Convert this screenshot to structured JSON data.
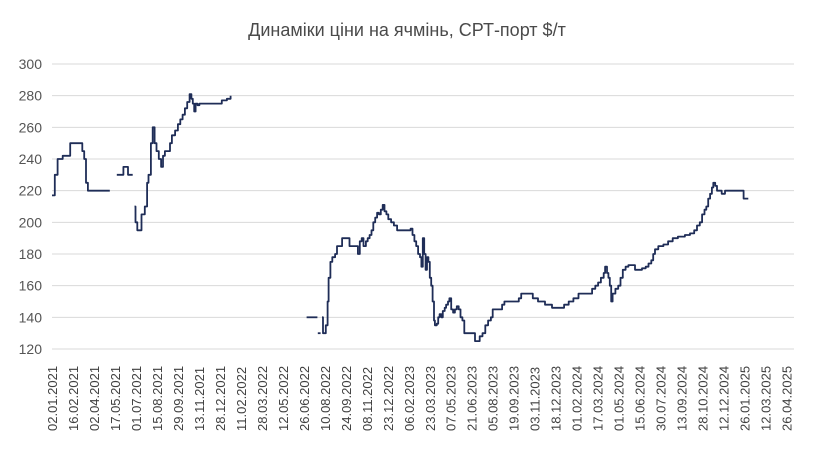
{
  "chart_data": {
    "type": "line",
    "title": "Динаміки ціни на ячмінь, СРТ-порт $/т",
    "xlabel": "",
    "ylabel": "",
    "ylim": [
      120,
      300
    ],
    "yticks": [
      120,
      140,
      160,
      180,
      200,
      220,
      240,
      260,
      280,
      300
    ],
    "grid": true,
    "legend": "none",
    "series_color": "#1f2d57",
    "grid_color": "#d9d9d9",
    "x_range": [
      "2021-01-02",
      "2025-05-12"
    ],
    "x_ticks": [
      {
        "label": "02.01.2021",
        "date": "2021-01-02"
      },
      {
        "label": "16.02.2021",
        "date": "2021-02-16"
      },
      {
        "label": "02.04.2021",
        "date": "2021-04-02"
      },
      {
        "label": "17.05.2021",
        "date": "2021-05-17"
      },
      {
        "label": "01.07.2021",
        "date": "2021-07-01"
      },
      {
        "label": "15.08.2021",
        "date": "2021-08-15"
      },
      {
        "label": "29.09.2021",
        "date": "2021-09-29"
      },
      {
        "label": "13.11.2021",
        "date": "2021-11-13"
      },
      {
        "label": "28.12.2021",
        "date": "2021-12-28"
      },
      {
        "label": "11.02.2022",
        "date": "2022-02-11"
      },
      {
        "label": "28.03.2022",
        "date": "2022-03-28"
      },
      {
        "label": "12.05.2022",
        "date": "2022-05-12"
      },
      {
        "label": "26.06.2022",
        "date": "2022-06-26"
      },
      {
        "label": "10.08.2022",
        "date": "2022-08-10"
      },
      {
        "label": "24.09.2022",
        "date": "2022-09-24"
      },
      {
        "label": "08.11.2022",
        "date": "2022-11-08"
      },
      {
        "label": "23.12.2022",
        "date": "2022-12-23"
      },
      {
        "label": "06.02.2023",
        "date": "2023-02-06"
      },
      {
        "label": "23.03.2023",
        "date": "2023-03-23"
      },
      {
        "label": "07.05.2023",
        "date": "2023-05-07"
      },
      {
        "label": "21.06.2023",
        "date": "2023-06-21"
      },
      {
        "label": "05.08.2023",
        "date": "2023-08-05"
      },
      {
        "label": "19.09.2023",
        "date": "2023-09-19"
      },
      {
        "label": "03.11.2023",
        "date": "2023-11-03"
      },
      {
        "label": "18.12.2023",
        "date": "2023-12-18"
      },
      {
        "label": "01.02.2024",
        "date": "2024-02-01"
      },
      {
        "label": "17.03.2024",
        "date": "2024-03-17"
      },
      {
        "label": "01.05.2024",
        "date": "2024-05-01"
      },
      {
        "label": "15.06.2024",
        "date": "2024-06-15"
      },
      {
        "label": "30.07.2024",
        "date": "2024-07-30"
      },
      {
        "label": "13.09.2024",
        "date": "2024-09-13"
      },
      {
        "label": "28.10.2024",
        "date": "2024-10-28"
      },
      {
        "label": "12.12.2024",
        "date": "2024-12-12"
      },
      {
        "label": "26.01.2025",
        "date": "2025-01-26"
      },
      {
        "label": "12.03.2025",
        "date": "2025-03-12"
      },
      {
        "label": "26.04.2025",
        "date": "2025-04-26"
      }
    ],
    "series": [
      {
        "segments": [
          [
            [
              "2021-01-02",
              217
            ],
            [
              "2021-01-08",
              230
            ],
            [
              "2021-01-14",
              240
            ],
            [
              "2021-01-25",
              242
            ],
            [
              "2021-02-05",
              242
            ],
            [
              "2021-02-10",
              250
            ],
            [
              "2021-02-28",
              250
            ],
            [
              "2021-03-08",
              245
            ],
            [
              "2021-03-12",
              240
            ],
            [
              "2021-03-16",
              225
            ],
            [
              "2021-03-20",
              220
            ],
            [
              "2021-05-06",
              220
            ]
          ],
          [
            [
              "2021-05-21",
              230
            ],
            [
              "2021-05-28",
              230
            ],
            [
              "2021-06-04",
              235
            ],
            [
              "2021-06-14",
              230
            ],
            [
              "2021-06-24",
              230
            ]
          ],
          [
            [
              "2021-06-28",
              210
            ],
            [
              "2021-06-30",
              200
            ],
            [
              "2021-07-04",
              195
            ],
            [
              "2021-07-09",
              195
            ],
            [
              "2021-07-13",
              205
            ],
            [
              "2021-07-20",
              210
            ],
            [
              "2021-07-25",
              225
            ],
            [
              "2021-07-28",
              230
            ],
            [
              "2021-08-02",
              250
            ],
            [
              "2021-08-06",
              260
            ],
            [
              "2021-08-10",
              250
            ],
            [
              "2021-08-14",
              245
            ],
            [
              "2021-08-19",
              240
            ],
            [
              "2021-08-24",
              235
            ],
            [
              "2021-08-28",
              242
            ],
            [
              "2021-09-01",
              245
            ],
            [
              "2021-09-08",
              245
            ],
            [
              "2021-09-12",
              250
            ],
            [
              "2021-09-16",
              255
            ],
            [
              "2021-09-23",
              258
            ],
            [
              "2021-09-29",
              262
            ],
            [
              "2021-10-04",
              265
            ],
            [
              "2021-10-09",
              268
            ],
            [
              "2021-10-14",
              272
            ],
            [
              "2021-10-19",
              276
            ],
            [
              "2021-10-24",
              281
            ],
            [
              "2021-10-28",
              278
            ],
            [
              "2021-10-31",
              275
            ],
            [
              "2021-11-03",
              270
            ],
            [
              "2021-11-06",
              275
            ],
            [
              "2021-11-10",
              274
            ],
            [
              "2021-11-14",
              275
            ],
            [
              "2021-11-24",
              275
            ],
            [
              "2021-12-01",
              275
            ],
            [
              "2021-12-26",
              275
            ],
            [
              "2022-01-01",
              277
            ],
            [
              "2022-01-12",
              278
            ],
            [
              "2022-01-20",
              280
            ]
          ]
        ]
      },
      {
        "segments": [
          [
            [
              "2022-07-02",
              140
            ],
            [
              "2022-07-25",
              140
            ]
          ],
          [
            [
              "2022-07-26",
              130
            ],
            [
              "2022-08-01",
              130
            ]
          ],
          [
            [
              "2022-08-04",
              140
            ],
            [
              "2022-08-06",
              130
            ],
            [
              "2022-08-09",
              130
            ],
            [
              "2022-08-12",
              135
            ],
            [
              "2022-08-15",
              135
            ],
            [
              "2022-08-16",
              150
            ],
            [
              "2022-08-18",
              165
            ],
            [
              "2022-08-22",
              175
            ],
            [
              "2022-08-26",
              178
            ],
            [
              "2022-09-01",
              180
            ],
            [
              "2022-09-05",
              185
            ],
            [
              "2022-09-12",
              185
            ],
            [
              "2022-09-16",
              190
            ],
            [
              "2022-09-28",
              190
            ],
            [
              "2022-10-02",
              185
            ],
            [
              "2022-10-16",
              185
            ],
            [
              "2022-10-20",
              180
            ],
            [
              "2022-10-24",
              188
            ],
            [
              "2022-10-28",
              190
            ],
            [
              "2022-11-01",
              185
            ],
            [
              "2022-11-06",
              188
            ],
            [
              "2022-11-10",
              190
            ],
            [
              "2022-11-14",
              192
            ],
            [
              "2022-11-18",
              195
            ],
            [
              "2022-11-22",
              200
            ],
            [
              "2022-11-26",
              203
            ],
            [
              "2022-11-30",
              206
            ],
            [
              "2022-12-04",
              205
            ],
            [
              "2022-12-08",
              208
            ],
            [
              "2022-12-12",
              211
            ],
            [
              "2022-12-16",
              207
            ],
            [
              "2022-12-20",
              205
            ],
            [
              "2022-12-24",
              202
            ],
            [
              "2022-12-30",
              200
            ],
            [
              "2023-01-05",
              198
            ],
            [
              "2023-01-12",
              195
            ],
            [
              "2023-02-05",
              195
            ],
            [
              "2023-02-10",
              196
            ],
            [
              "2023-02-14",
              192
            ],
            [
              "2023-02-18",
              188
            ],
            [
              "2023-02-22",
              185
            ],
            [
              "2023-02-26",
              180
            ],
            [
              "2023-03-02",
              178
            ],
            [
              "2023-03-05",
              172
            ],
            [
              "2023-03-08",
              190
            ],
            [
              "2023-03-11",
              180
            ],
            [
              "2023-03-14",
              170
            ],
            [
              "2023-03-17",
              178
            ],
            [
              "2023-03-20",
              175
            ],
            [
              "2023-03-23",
              165
            ],
            [
              "2023-03-26",
              160
            ],
            [
              "2023-03-29",
              150
            ],
            [
              "2023-04-01",
              138
            ],
            [
              "2023-04-03",
              135
            ],
            [
              "2023-04-07",
              136
            ],
            [
              "2023-04-10",
              140
            ],
            [
              "2023-04-13",
              142
            ],
            [
              "2023-04-17",
              140
            ],
            [
              "2023-04-20",
              144
            ],
            [
              "2023-04-24",
              146
            ],
            [
              "2023-04-27",
              148
            ],
            [
              "2023-05-01",
              150
            ],
            [
              "2023-05-04",
              152
            ],
            [
              "2023-05-08",
              145
            ],
            [
              "2023-05-12",
              143
            ],
            [
              "2023-05-16",
              145
            ],
            [
              "2023-05-20",
              147
            ],
            [
              "2023-05-24",
              145
            ],
            [
              "2023-05-28",
              140
            ],
            [
              "2023-06-01",
              138
            ],
            [
              "2023-06-05",
              130
            ],
            [
              "2023-06-25",
              130
            ],
            [
              "2023-06-28",
              125
            ],
            [
              "2023-07-05",
              125
            ],
            [
              "2023-07-08",
              128
            ],
            [
              "2023-07-14",
              130
            ],
            [
              "2023-07-20",
              135
            ],
            [
              "2023-07-26",
              138
            ],
            [
              "2023-08-01",
              140
            ],
            [
              "2023-08-05",
              145
            ],
            [
              "2023-08-20",
              145
            ],
            [
              "2023-08-25",
              148
            ],
            [
              "2023-08-30",
              150
            ],
            [
              "2023-09-25",
              150
            ],
            [
              "2023-09-30",
              152
            ],
            [
              "2023-10-05",
              155
            ],
            [
              "2023-10-25",
              155
            ],
            [
              "2023-10-30",
              152
            ],
            [
              "2023-11-10",
              150
            ],
            [
              "2023-11-20",
              150
            ],
            [
              "2023-11-25",
              148
            ],
            [
              "2023-12-05",
              148
            ],
            [
              "2023-12-10",
              146
            ],
            [
              "2023-12-25",
              146
            ],
            [
              "2024-01-05",
              148
            ],
            [
              "2024-01-15",
              150
            ],
            [
              "2024-01-25",
              152
            ],
            [
              "2024-02-05",
              155
            ],
            [
              "2024-02-25",
              155
            ],
            [
              "2024-03-05",
              158
            ],
            [
              "2024-03-12",
              160
            ],
            [
              "2024-03-18",
              162
            ],
            [
              "2024-03-24",
              165
            ],
            [
              "2024-03-30",
              168
            ],
            [
              "2024-04-02",
              172
            ],
            [
              "2024-04-06",
              168
            ],
            [
              "2024-04-09",
              165
            ],
            [
              "2024-04-12",
              160
            ],
            [
              "2024-04-15",
              150
            ],
            [
              "2024-04-18",
              155
            ],
            [
              "2024-04-24",
              158
            ],
            [
              "2024-04-30",
              160
            ],
            [
              "2024-05-05",
              165
            ],
            [
              "2024-05-10",
              170
            ],
            [
              "2024-05-16",
              172
            ],
            [
              "2024-05-22",
              173
            ],
            [
              "2024-06-05",
              170
            ],
            [
              "2024-06-20",
              171
            ],
            [
              "2024-06-28",
              172
            ],
            [
              "2024-07-04",
              174
            ],
            [
              "2024-07-10",
              176
            ],
            [
              "2024-07-14",
              180
            ],
            [
              "2024-07-18",
              183
            ],
            [
              "2024-07-25",
              185
            ],
            [
              "2024-08-05",
              186
            ],
            [
              "2024-08-15",
              188
            ],
            [
              "2024-08-25",
              190
            ],
            [
              "2024-09-05",
              191
            ],
            [
              "2024-09-20",
              192
            ],
            [
              "2024-10-01",
              193
            ],
            [
              "2024-10-10",
              195
            ],
            [
              "2024-10-16",
              198
            ],
            [
              "2024-10-22",
              200
            ],
            [
              "2024-10-27",
              205
            ],
            [
              "2024-11-01",
              208
            ],
            [
              "2024-11-05",
              210
            ],
            [
              "2024-11-09",
              215
            ],
            [
              "2024-11-13",
              218
            ],
            [
              "2024-11-17",
              222
            ],
            [
              "2024-11-20",
              225
            ],
            [
              "2024-11-24",
              223
            ],
            [
              "2024-11-28",
              220
            ],
            [
              "2024-12-04",
              220
            ],
            [
              "2024-12-08",
              218
            ],
            [
              "2024-12-15",
              220
            ],
            [
              "2024-12-25",
              220
            ],
            [
              "2025-01-05",
              220
            ],
            [
              "2025-01-20",
              220
            ],
            [
              "2025-01-24",
              215
            ],
            [
              "2025-02-03",
              215
            ]
          ]
        ]
      }
    ]
  }
}
